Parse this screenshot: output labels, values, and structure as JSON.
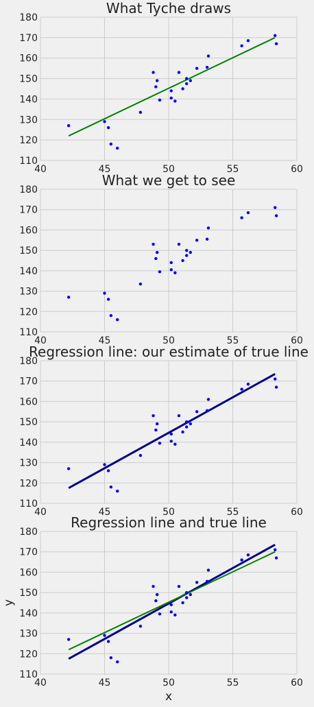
{
  "chart_data": [
    {
      "type": "scatter",
      "title": "What Tyche draws",
      "xlim": [
        40,
        60
      ],
      "ylim": [
        110,
        180
      ],
      "xticks": [
        40,
        45,
        50,
        55,
        60
      ],
      "yticks": [
        110,
        120,
        130,
        140,
        150,
        160,
        170,
        180
      ],
      "xlabel": "",
      "ylabel": "",
      "grid": true,
      "show_points": true,
      "lines": [
        {
          "color": "#008000",
          "width": 2,
          "x": [
            42.2,
            58.3
          ],
          "y": [
            122,
            170
          ]
        }
      ]
    },
    {
      "type": "scatter",
      "title": "What we get to see",
      "xlim": [
        40,
        60
      ],
      "ylim": [
        110,
        180
      ],
      "xticks": [
        40,
        45,
        50,
        55,
        60
      ],
      "yticks": [
        110,
        120,
        130,
        140,
        150,
        160,
        170,
        180
      ],
      "xlabel": "",
      "ylabel": "",
      "grid": true,
      "show_points": true,
      "lines": []
    },
    {
      "type": "scatter",
      "title": "Regression line: our estimate of true line",
      "xlim": [
        40,
        60
      ],
      "ylim": [
        110,
        180
      ],
      "xticks": [
        40,
        45,
        50,
        55,
        60
      ],
      "yticks": [
        110,
        120,
        130,
        140,
        150,
        160,
        170,
        180
      ],
      "xlabel": "",
      "ylabel": "",
      "grid": true,
      "show_points": true,
      "lines": [
        {
          "color": "#00008b",
          "width": 3,
          "x": [
            42.2,
            58.3
          ],
          "y": [
            117.5,
            173.5
          ]
        }
      ]
    },
    {
      "type": "scatter",
      "title": "Regression line and true line",
      "xlim": [
        40,
        60
      ],
      "ylim": [
        110,
        180
      ],
      "xticks": [
        40,
        45,
        50,
        55,
        60
      ],
      "yticks": [
        110,
        120,
        130,
        140,
        150,
        160,
        170,
        180
      ],
      "xlabel": "x",
      "ylabel": "y",
      "grid": true,
      "show_points": true,
      "lines": [
        {
          "color": "#00008b",
          "width": 3,
          "x": [
            42.2,
            58.3
          ],
          "y": [
            117.5,
            173.5
          ]
        },
        {
          "color": "#008000",
          "width": 2,
          "x": [
            42.2,
            58.3
          ],
          "y": [
            122,
            170
          ]
        }
      ]
    }
  ],
  "points": {
    "color": "#0000ff",
    "x": [
      42.2,
      45.0,
      45.3,
      45.5,
      46.0,
      47.8,
      48.8,
      49.0,
      49.1,
      49.3,
      50.2,
      50.2,
      50.5,
      50.8,
      51.1,
      51.4,
      51.4,
      51.7,
      52.2,
      53.0,
      53.1,
      55.7,
      56.2,
      58.3,
      58.4
    ],
    "y": [
      127,
      129,
      126,
      118,
      116,
      133.5,
      153,
      146,
      149,
      139.5,
      140.5,
      144,
      139,
      153,
      145,
      147.5,
      150,
      149,
      155,
      155.5,
      161,
      166,
      168.5,
      171,
      167
    ]
  }
}
